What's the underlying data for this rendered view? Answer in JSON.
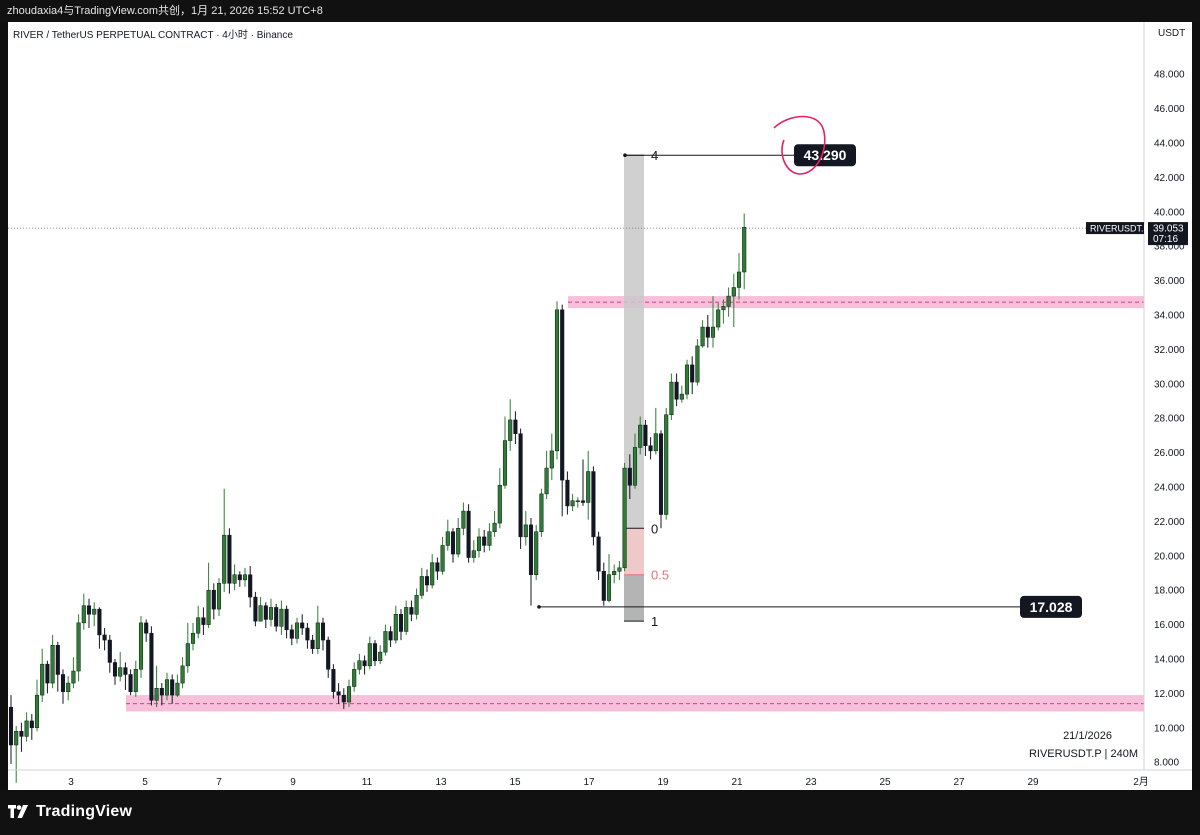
{
  "header": {
    "text": "zhoudaxia4与TradingView.com共创，1月 21, 2026 15:52 UTC+8"
  },
  "chart_data": {
    "type": "candlestick",
    "title": "RIVER / TetherUS PERPETUAL CONTRACT · 4小时 · Binance",
    "y_unit": "USDT",
    "ylim": [
      6.6,
      49.0
    ],
    "y_ticks": [
      "8.000",
      "10.000",
      "12.000",
      "14.000",
      "16.000",
      "18.000",
      "20.000",
      "22.000",
      "24.000",
      "26.000",
      "28.000",
      "30.000",
      "32.000",
      "34.000",
      "36.000",
      "38.000",
      "40.000",
      "42.000",
      "44.000",
      "46.000",
      "48.000"
    ],
    "x_ticks": [
      "3",
      "5",
      "7",
      "9",
      "11",
      "13",
      "15",
      "17",
      "19",
      "21",
      "23",
      "25",
      "27",
      "29",
      "2月"
    ],
    "colors": {
      "up": "#2e7d32",
      "down": "#131722",
      "zone": "#f5a9cf",
      "fib_box": "#c8c8c8",
      "fib_red": "#e57373",
      "circle": "#e91e63"
    },
    "candles": [
      [
        11.2,
        9.0,
        11.9,
        7.9
      ],
      [
        9.0,
        9.8,
        10.1,
        6.8
      ],
      [
        9.8,
        9.5,
        10.3,
        8.6
      ],
      [
        9.5,
        10.4,
        10.9,
        9.2
      ],
      [
        10.4,
        10.0,
        10.8,
        9.3
      ],
      [
        10.0,
        11.9,
        12.8,
        9.8
      ],
      [
        11.9,
        13.7,
        14.6,
        11.5
      ],
      [
        13.7,
        12.6,
        13.9,
        12.0
      ],
      [
        12.6,
        14.8,
        15.4,
        12.3
      ],
      [
        14.8,
        13.1,
        15.0,
        12.1
      ],
      [
        13.1,
        12.1,
        13.4,
        11.4
      ],
      [
        12.1,
        12.6,
        13.0,
        11.6
      ],
      [
        12.6,
        13.3,
        14.1,
        12.3
      ],
      [
        13.3,
        16.1,
        16.6,
        12.7
      ],
      [
        16.1,
        17.1,
        17.8,
        15.7
      ],
      [
        17.1,
        16.6,
        17.5,
        15.8
      ],
      [
        16.6,
        16.9,
        17.3,
        15.9
      ],
      [
        16.9,
        15.4,
        17.0,
        14.6
      ],
      [
        15.4,
        15.1,
        15.8,
        14.5
      ],
      [
        15.1,
        13.8,
        15.4,
        13.2
      ],
      [
        13.8,
        13.0,
        14.0,
        12.5
      ],
      [
        13.0,
        13.5,
        14.4,
        12.7
      ],
      [
        13.5,
        13.1,
        13.8,
        12.2
      ],
      [
        13.1,
        12.1,
        13.4,
        11.9
      ],
      [
        12.1,
        13.4,
        13.9,
        11.8
      ],
      [
        13.4,
        16.1,
        16.5,
        12.9
      ],
      [
        16.1,
        15.5,
        16.3,
        15.0
      ],
      [
        15.5,
        11.6,
        15.9,
        11.3
      ],
      [
        11.6,
        12.3,
        13.6,
        11.2
      ],
      [
        12.3,
        11.9,
        12.6,
        11.3
      ],
      [
        11.9,
        12.8,
        13.2,
        11.6
      ],
      [
        12.8,
        11.9,
        13.1,
        11.4
      ],
      [
        11.9,
        12.6,
        13.1,
        11.8
      ],
      [
        12.6,
        13.6,
        14.1,
        12.3
      ],
      [
        13.6,
        14.9,
        16.1,
        13.2
      ],
      [
        14.9,
        15.5,
        16.1,
        14.5
      ],
      [
        15.5,
        16.4,
        17.1,
        15.2
      ],
      [
        16.4,
        16.0,
        17.0,
        15.4
      ],
      [
        16.0,
        18.0,
        19.6,
        15.8
      ],
      [
        18.0,
        16.9,
        18.4,
        16.3
      ],
      [
        16.9,
        18.4,
        18.7,
        16.5
      ],
      [
        18.4,
        21.2,
        23.9,
        17.9
      ],
      [
        21.2,
        18.4,
        21.6,
        17.8
      ],
      [
        18.4,
        18.9,
        19.5,
        18.0
      ],
      [
        18.9,
        18.6,
        19.1,
        18.2
      ],
      [
        18.6,
        18.9,
        19.3,
        18.2
      ],
      [
        18.9,
        17.6,
        19.4,
        17.0
      ],
      [
        17.6,
        16.2,
        17.9,
        15.9
      ],
      [
        16.2,
        17.1,
        17.6,
        16.6
      ],
      [
        17.1,
        16.3,
        17.3,
        15.8
      ],
      [
        16.3,
        17.0,
        17.5,
        15.9
      ],
      [
        17.0,
        15.9,
        17.2,
        15.6
      ],
      [
        15.9,
        16.9,
        17.4,
        15.4
      ],
      [
        16.9,
        15.7,
        17.1,
        15.2
      ],
      [
        15.7,
        15.2,
        16.0,
        14.8
      ],
      [
        15.2,
        16.1,
        16.4,
        14.9
      ],
      [
        16.1,
        15.8,
        16.6,
        15.4
      ],
      [
        15.8,
        15.1,
        16.1,
        14.6
      ],
      [
        15.1,
        14.6,
        15.4,
        14.3
      ],
      [
        14.6,
        16.1,
        17.1,
        14.3
      ],
      [
        16.1,
        15.1,
        16.4,
        14.5
      ],
      [
        15.1,
        13.4,
        15.3,
        12.9
      ],
      [
        13.4,
        12.1,
        13.7,
        11.7
      ],
      [
        12.1,
        11.9,
        12.6,
        11.4
      ],
      [
        11.9,
        11.5,
        12.3,
        11.1
      ],
      [
        11.5,
        12.4,
        12.8,
        11.2
      ],
      [
        12.4,
        13.4,
        13.8,
        12.1
      ],
      [
        13.4,
        13.9,
        14.3,
        13.1
      ],
      [
        13.9,
        13.6,
        14.2,
        13.1
      ],
      [
        13.6,
        14.9,
        15.3,
        13.4
      ],
      [
        14.9,
        13.9,
        15.1,
        13.6
      ],
      [
        13.9,
        14.4,
        14.8,
        13.7
      ],
      [
        14.4,
        15.6,
        16.0,
        14.2
      ],
      [
        15.6,
        15.1,
        15.9,
        14.7
      ],
      [
        15.1,
        16.6,
        17.1,
        14.9
      ],
      [
        16.6,
        15.6,
        16.9,
        15.1
      ],
      [
        15.6,
        17.0,
        17.4,
        15.4
      ],
      [
        17.0,
        16.6,
        17.4,
        16.2
      ],
      [
        16.6,
        17.7,
        18.1,
        16.3
      ],
      [
        17.7,
        18.8,
        19.3,
        17.5
      ],
      [
        18.8,
        18.3,
        19.2,
        17.9
      ],
      [
        18.3,
        19.6,
        20.1,
        18.1
      ],
      [
        19.6,
        19.1,
        19.9,
        18.6
      ],
      [
        19.1,
        20.6,
        21.1,
        18.9
      ],
      [
        20.6,
        21.4,
        22.1,
        20.3
      ],
      [
        21.4,
        20.1,
        21.6,
        19.6
      ],
      [
        20.1,
        21.6,
        22.2,
        19.9
      ],
      [
        21.6,
        22.6,
        23.1,
        21.2
      ],
      [
        22.6,
        19.9,
        23.0,
        19.6
      ],
      [
        19.9,
        20.3,
        20.9,
        19.6
      ],
      [
        20.3,
        21.1,
        21.6,
        19.9
      ],
      [
        21.1,
        20.6,
        21.5,
        20.2
      ],
      [
        20.6,
        21.4,
        21.9,
        20.3
      ],
      [
        21.4,
        21.9,
        22.6,
        21.1
      ],
      [
        21.9,
        24.1,
        25.1,
        21.6
      ],
      [
        24.1,
        26.7,
        28.1,
        23.9
      ],
      [
        26.7,
        27.9,
        29.1,
        26.1
      ],
      [
        27.9,
        27.1,
        28.4,
        26.5
      ],
      [
        27.1,
        21.1,
        27.4,
        20.4
      ],
      [
        21.1,
        21.8,
        22.6,
        20.6
      ],
      [
        21.8,
        18.9,
        22.2,
        17.1
      ],
      [
        18.9,
        21.4,
        21.8,
        18.6
      ],
      [
        21.4,
        23.6,
        23.9,
        21.1
      ],
      [
        23.6,
        25.1,
        26.1,
        23.3
      ],
      [
        25.1,
        26.1,
        27.1,
        24.4
      ],
      [
        26.1,
        34.3,
        34.8,
        25.6
      ],
      [
        34.3,
        24.4,
        34.6,
        22.3
      ],
      [
        24.4,
        22.9,
        24.9,
        22.4
      ],
      [
        22.9,
        23.2,
        23.6,
        22.6
      ],
      [
        23.2,
        23.2,
        23.4,
        22.8
      ],
      [
        23.2,
        23.1,
        25.6,
        22.9
      ],
      [
        23.1,
        24.9,
        26.1,
        22.1
      ],
      [
        24.9,
        21.1,
        25.2,
        20.6
      ],
      [
        21.1,
        19.1,
        21.4,
        18.6
      ],
      [
        19.1,
        17.4,
        19.6,
        17.1
      ],
      [
        17.4,
        18.9,
        20.1,
        17.3
      ],
      [
        18.9,
        19.1,
        19.5,
        18.4
      ],
      [
        19.1,
        19.3,
        19.7,
        18.6
      ],
      [
        19.3,
        25.1,
        25.4,
        19.1
      ],
      [
        25.1,
        24.1,
        25.9,
        23.3
      ],
      [
        24.1,
        26.3,
        27.1,
        23.9
      ],
      [
        26.3,
        27.6,
        28.1,
        25.9
      ],
      [
        27.6,
        26.4,
        27.9,
        25.8
      ],
      [
        26.4,
        26.1,
        26.9,
        25.6
      ],
      [
        26.1,
        27.1,
        28.6,
        25.9
      ],
      [
        27.1,
        22.4,
        27.3,
        21.6
      ],
      [
        22.4,
        28.2,
        28.6,
        22.1
      ],
      [
        28.2,
        30.1,
        30.6,
        27.9
      ],
      [
        30.1,
        29.1,
        30.6,
        28.7
      ],
      [
        29.1,
        29.4,
        29.9,
        28.9
      ],
      [
        29.4,
        31.1,
        31.4,
        29.1
      ],
      [
        31.1,
        30.1,
        31.6,
        29.4
      ],
      [
        30.1,
        32.2,
        32.6,
        29.9
      ],
      [
        32.2,
        33.3,
        33.7,
        32.1
      ],
      [
        33.3,
        32.7,
        34.0,
        32.1
      ],
      [
        32.7,
        33.3,
        35.1,
        32.1
      ],
      [
        33.3,
        34.3,
        34.7,
        33.1
      ],
      [
        34.3,
        34.5,
        34.9,
        33.5
      ],
      [
        34.5,
        35.1,
        35.6,
        33.9
      ],
      [
        35.1,
        35.6,
        36.4,
        33.3
      ],
      [
        35.6,
        36.5,
        37.6,
        34.9
      ],
      [
        36.5,
        39.1,
        39.9,
        35.5
      ]
    ],
    "price_lines": [
      {
        "label": "RIVERUSDT.P",
        "price": "39.053",
        "countdown": "07:16"
      }
    ],
    "zones": [
      {
        "y1": 34.4,
        "y2": 35.1,
        "mid": 34.75
      },
      {
        "y1": 10.95,
        "y2": 11.9,
        "mid": 11.4
      }
    ],
    "fib": {
      "levels": [
        {
          "label": "4",
          "price": 43.29
        },
        {
          "label": "0",
          "price": 21.6
        },
        {
          "label": "0.5",
          "price": 18.9
        },
        {
          "label": "1",
          "price": 16.2
        }
      ]
    },
    "marked_levels": [
      {
        "label": "43.290",
        "price": 43.29
      },
      {
        "label": "17.028",
        "price": 17.028
      }
    ],
    "date_stamp": "21/1/2026",
    "bottom_note": "RIVERUSDT.P | 240M"
  },
  "footer": {
    "logo_text": "TradingView"
  }
}
